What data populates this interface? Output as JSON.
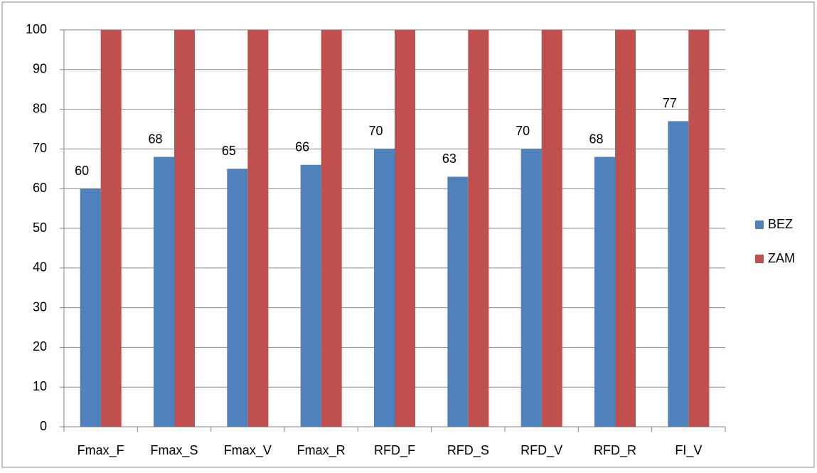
{
  "chart_data": {
    "type": "bar",
    "categories": [
      "Fmax_F",
      "Fmax_S",
      "Fmax_V",
      "Fmax_R",
      "RFD_F",
      "RFD_S",
      "RFD_V",
      "RFD_R",
      "FI_V"
    ],
    "series": [
      {
        "name": "BEZ",
        "color": "#4f81bd",
        "values": [
          60,
          68,
          65,
          66,
          70,
          63,
          70,
          68,
          77
        ],
        "show_labels": true
      },
      {
        "name": "ZAM",
        "color": "#c0504d",
        "values": [
          100,
          100,
          100,
          100,
          100,
          100,
          100,
          100,
          100
        ],
        "show_labels": false
      }
    ],
    "ylim": [
      0,
      100
    ],
    "yticks": [
      0,
      10,
      20,
      30,
      40,
      50,
      60,
      70,
      80,
      90,
      100
    ],
    "grid": true,
    "legend": "right"
  }
}
